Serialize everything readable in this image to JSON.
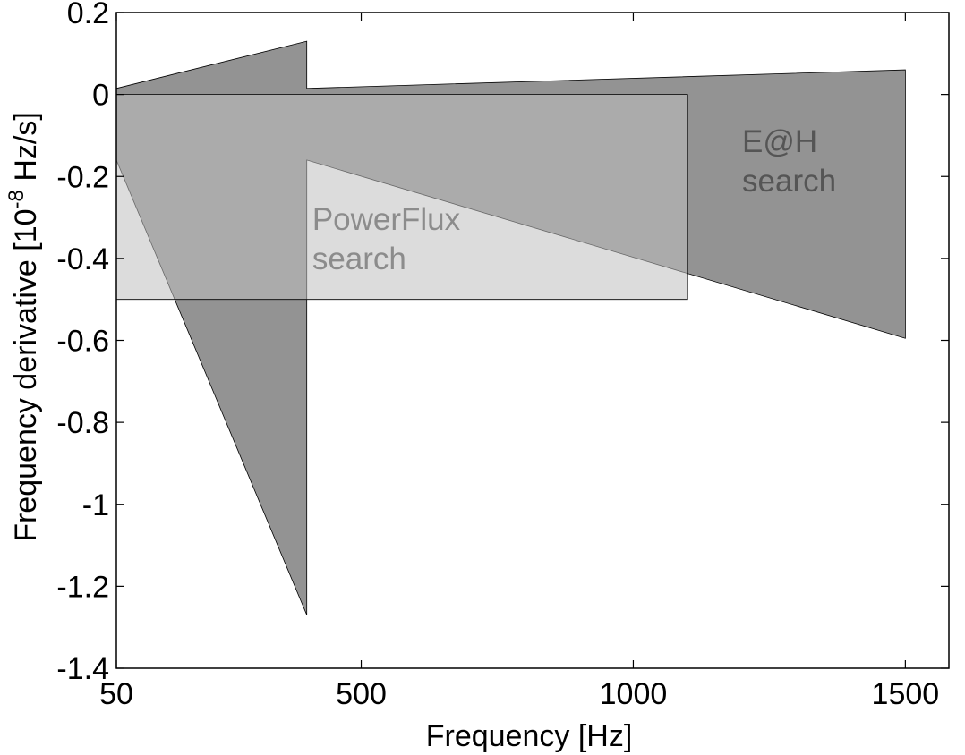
{
  "chart_data": {
    "type": "area",
    "xlabel": "Frequency [Hz]",
    "ylabel": {
      "prefix": "Frequency derivative [10",
      "exponent": "-8",
      "suffix": " Hz/s]"
    },
    "xlim": [
      50,
      1580
    ],
    "ylim": [
      -1.4,
      0.2
    ],
    "xticks": [
      50,
      500,
      1000,
      1500
    ],
    "xtick_labels": [
      "50",
      "500",
      "1000",
      "1500"
    ],
    "yticks": [
      0.2,
      0,
      -0.2,
      -0.4,
      -0.6,
      -0.8,
      -1,
      -1.2,
      -1.4
    ],
    "ytick_labels": [
      "0.2",
      "0",
      "-0.2",
      "-0.4",
      "-0.6",
      "-0.8",
      "-1",
      "-1.2",
      "-1.4"
    ],
    "series": [
      {
        "label": "E@H search",
        "color": "#808080",
        "opacity": 0.85,
        "label_color": "#555555",
        "label_position": [
          1200,
          -0.14
        ],
        "polygon": [
          [
            50,
            0.015
          ],
          [
            400,
            0.13
          ],
          [
            400,
            0.015
          ],
          [
            1500,
            0.06
          ],
          [
            1500,
            -0.595
          ],
          [
            400,
            -0.16
          ],
          [
            400,
            -1.27
          ],
          [
            50,
            -0.16
          ]
        ]
      },
      {
        "label": "PowerFlux search",
        "color": "#bfbfbf",
        "opacity": 0.55,
        "label_color": "#8c8c8c",
        "label_position": [
          410,
          -0.33
        ],
        "polygon": [
          [
            50,
            0
          ],
          [
            1100,
            0
          ],
          [
            1100,
            -0.5
          ],
          [
            50,
            -0.5
          ]
        ]
      }
    ],
    "grid": false,
    "legend": "none"
  }
}
